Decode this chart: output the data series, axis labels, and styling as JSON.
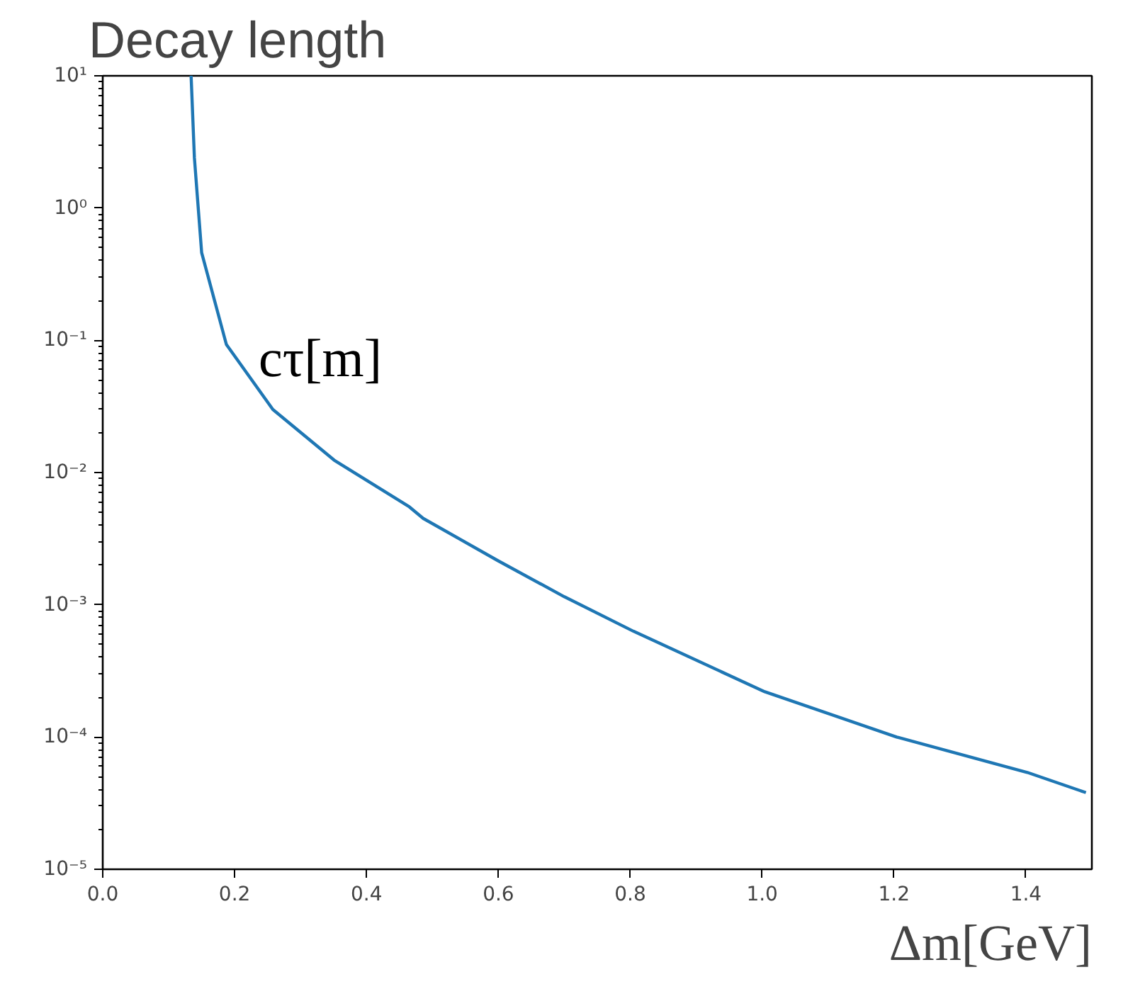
{
  "chart_data": {
    "type": "line",
    "title": "Decay length",
    "xlabel": "Δm[GeV]",
    "annotations": [
      "cτ[m]"
    ],
    "x": [
      0.134,
      0.139,
      0.15,
      0.1875,
      0.258,
      0.351,
      0.465,
      0.486,
      0.599,
      0.7,
      0.805,
      1.004,
      1.204,
      1.402,
      1.491
    ],
    "series": [
      {
        "color": "#1f77b4",
        "values": [
          10,
          2.4,
          0.46,
          0.093,
          0.03,
          0.0124,
          0.0055,
          0.0045,
          0.00216,
          0.00115,
          0.00063,
          0.00022,
          0.0001,
          5.4e-05,
          3.8e-05
        ]
      }
    ],
    "log": "y",
    "xlim": [
      0,
      1.5
    ],
    "ylim": [
      1e-05,
      10
    ],
    "xticks": [
      {
        "value": 0,
        "label": "0.0"
      },
      0.2,
      0.4,
      0.6,
      0.8,
      {
        "value": 1,
        "label": "1.0"
      },
      1.2,
      1.4
    ],
    "yticks": [
      {
        "value": 1e-05,
        "label": "10⁻⁵"
      },
      {
        "value": 0.0001,
        "label": "10⁻⁴"
      },
      {
        "value": 0.001,
        "label": "10⁻³"
      },
      {
        "value": 0.01,
        "label": "10⁻²"
      },
      {
        "value": 0.1,
        "label": "10⁻¹"
      },
      {
        "value": 1,
        "label": "10⁰"
      },
      {
        "value": 10,
        "label": "10¹"
      }
    ],
    "grid": false,
    "line_style": "solid",
    "marker": "none"
  }
}
